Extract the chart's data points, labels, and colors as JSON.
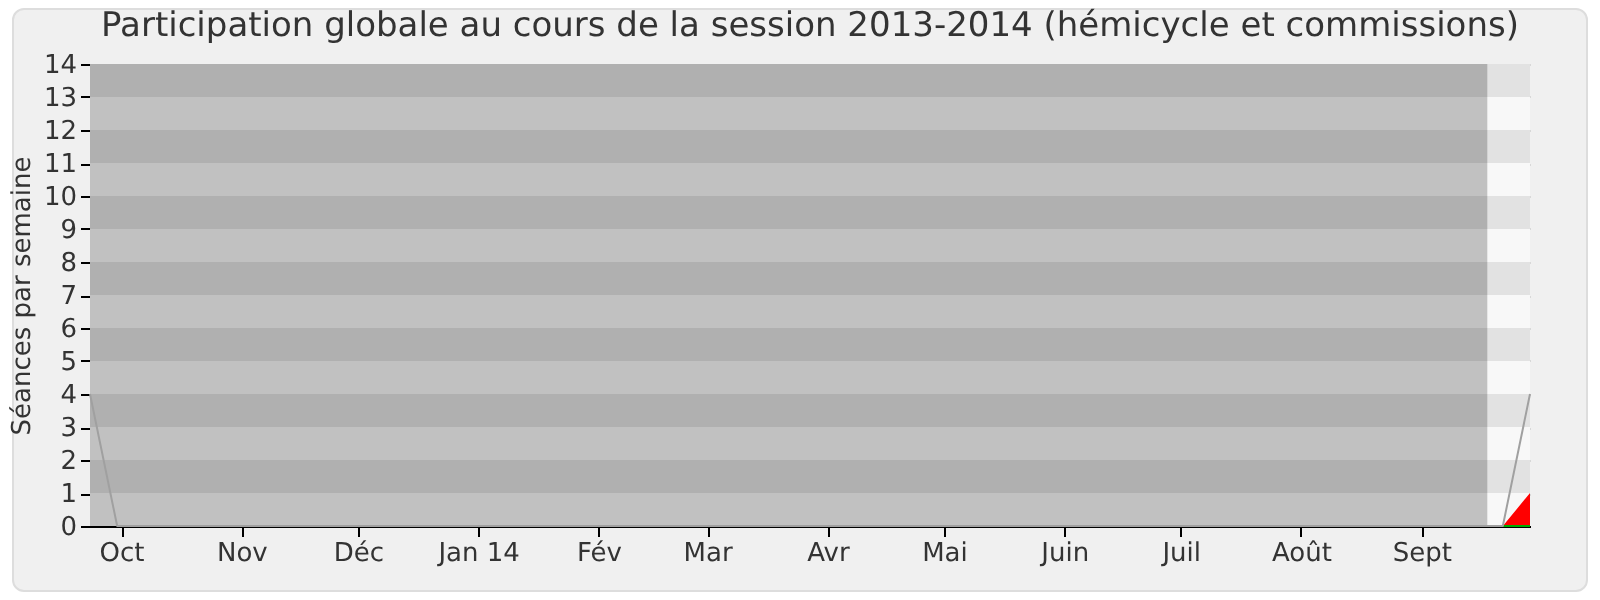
{
  "chart_data": {
    "type": "line",
    "title": "Participation globale au cours de la session 2013-2014 (hémicycle et commissions)",
    "ylabel": "Séances par semaine",
    "x": [
      "2013-09-23",
      "2013-09-30",
      "2013-10-07",
      "2013-10-14",
      "2013-10-21",
      "2013-10-28",
      "2013-11-04",
      "2013-11-11",
      "2013-11-18",
      "2013-11-25",
      "2013-12-02",
      "2013-12-09",
      "2013-12-16",
      "2013-12-23",
      "2013-12-30",
      "2014-01-06",
      "2014-01-13",
      "2014-01-20",
      "2014-01-27",
      "2014-02-03",
      "2014-02-10",
      "2014-02-17",
      "2014-02-24",
      "2014-03-03",
      "2014-03-10",
      "2014-03-17",
      "2014-03-24",
      "2014-03-31",
      "2014-04-07",
      "2014-04-14",
      "2014-04-21",
      "2014-04-28",
      "2014-05-05",
      "2014-05-12",
      "2014-05-19",
      "2014-05-26",
      "2014-06-02",
      "2014-06-09",
      "2014-06-16",
      "2014-06-23",
      "2014-06-30",
      "2014-07-07",
      "2014-07-14",
      "2014-07-21",
      "2014-07-28",
      "2014-08-04",
      "2014-08-11",
      "2014-08-18",
      "2014-08-25",
      "2014-09-01",
      "2014-09-08",
      "2014-09-15",
      "2014-09-22",
      "2014-09-29"
    ],
    "series": [
      {
        "type": "area",
        "color": "#ff0000",
        "values": [
          0,
          0,
          0,
          0,
          0,
          0,
          0,
          0,
          0,
          0,
          0,
          0,
          0,
          0,
          0,
          0,
          0,
          0,
          0,
          0,
          0,
          0,
          0,
          0,
          0,
          0,
          0,
          0,
          0,
          0,
          0,
          0,
          0,
          0,
          0,
          0,
          0,
          0,
          0,
          0,
          0,
          0,
          0,
          0,
          0,
          0,
          0,
          0,
          0,
          0,
          0,
          0,
          0,
          1
        ]
      },
      {
        "color": "#00aa00",
        "values": [
          null,
          null,
          null,
          null,
          null,
          null,
          null,
          null,
          null,
          null,
          null,
          null,
          null,
          null,
          null,
          null,
          null,
          null,
          null,
          null,
          null,
          null,
          null,
          null,
          null,
          null,
          null,
          null,
          null,
          null,
          null,
          null,
          null,
          null,
          null,
          null,
          null,
          null,
          null,
          null,
          null,
          null,
          null,
          null,
          null,
          null,
          null,
          null,
          null,
          null,
          null,
          null,
          0,
          0
        ]
      },
      {
        "color": "#a0a0a0",
        "values": [
          4,
          0,
          0,
          0,
          0,
          0,
          0,
          0,
          0,
          0,
          0,
          0,
          0,
          0,
          0,
          0,
          0,
          0,
          0,
          0,
          0,
          0,
          0,
          0,
          0,
          0,
          0,
          0,
          0,
          0,
          0,
          0,
          0,
          0,
          0,
          0,
          0,
          0,
          0,
          0,
          0,
          0,
          0,
          0,
          0,
          0,
          0,
          0,
          0,
          0,
          0,
          0,
          0,
          4
        ]
      }
    ],
    "xlim": [
      "2013-09-23",
      "2014-09-29"
    ],
    "ylim": [
      0,
      14
    ],
    "xticks": [
      {
        "value": "2013-10-01",
        "label": "Oct"
      },
      {
        "value": "2013-11-01",
        "label": "Nov"
      },
      {
        "value": "2013-12-01",
        "label": "Déc"
      },
      {
        "value": "2014-01-01",
        "label": "Jan 14"
      },
      {
        "value": "2014-02-01",
        "label": "Fév"
      },
      {
        "value": "2014-03-01",
        "label": "Mar"
      },
      {
        "value": "2014-04-01",
        "label": "Avr"
      },
      {
        "value": "2014-05-01",
        "label": "Mai"
      },
      {
        "value": "2014-06-01",
        "label": "Juin"
      },
      {
        "value": "2014-07-01",
        "label": "Juil"
      },
      {
        "value": "2014-08-01",
        "label": "Août"
      },
      {
        "value": "2014-09-01",
        "label": "Sept"
      }
    ],
    "yticks": [
      0,
      1,
      2,
      3,
      4,
      5,
      6,
      7,
      8,
      9,
      10,
      11,
      12,
      13,
      14
    ],
    "bands": [
      {
        "axis": "x",
        "from": "2013-09-23",
        "to": "2014-09-18",
        "color": "#000000"
      }
    ],
    "grid": "y"
  }
}
